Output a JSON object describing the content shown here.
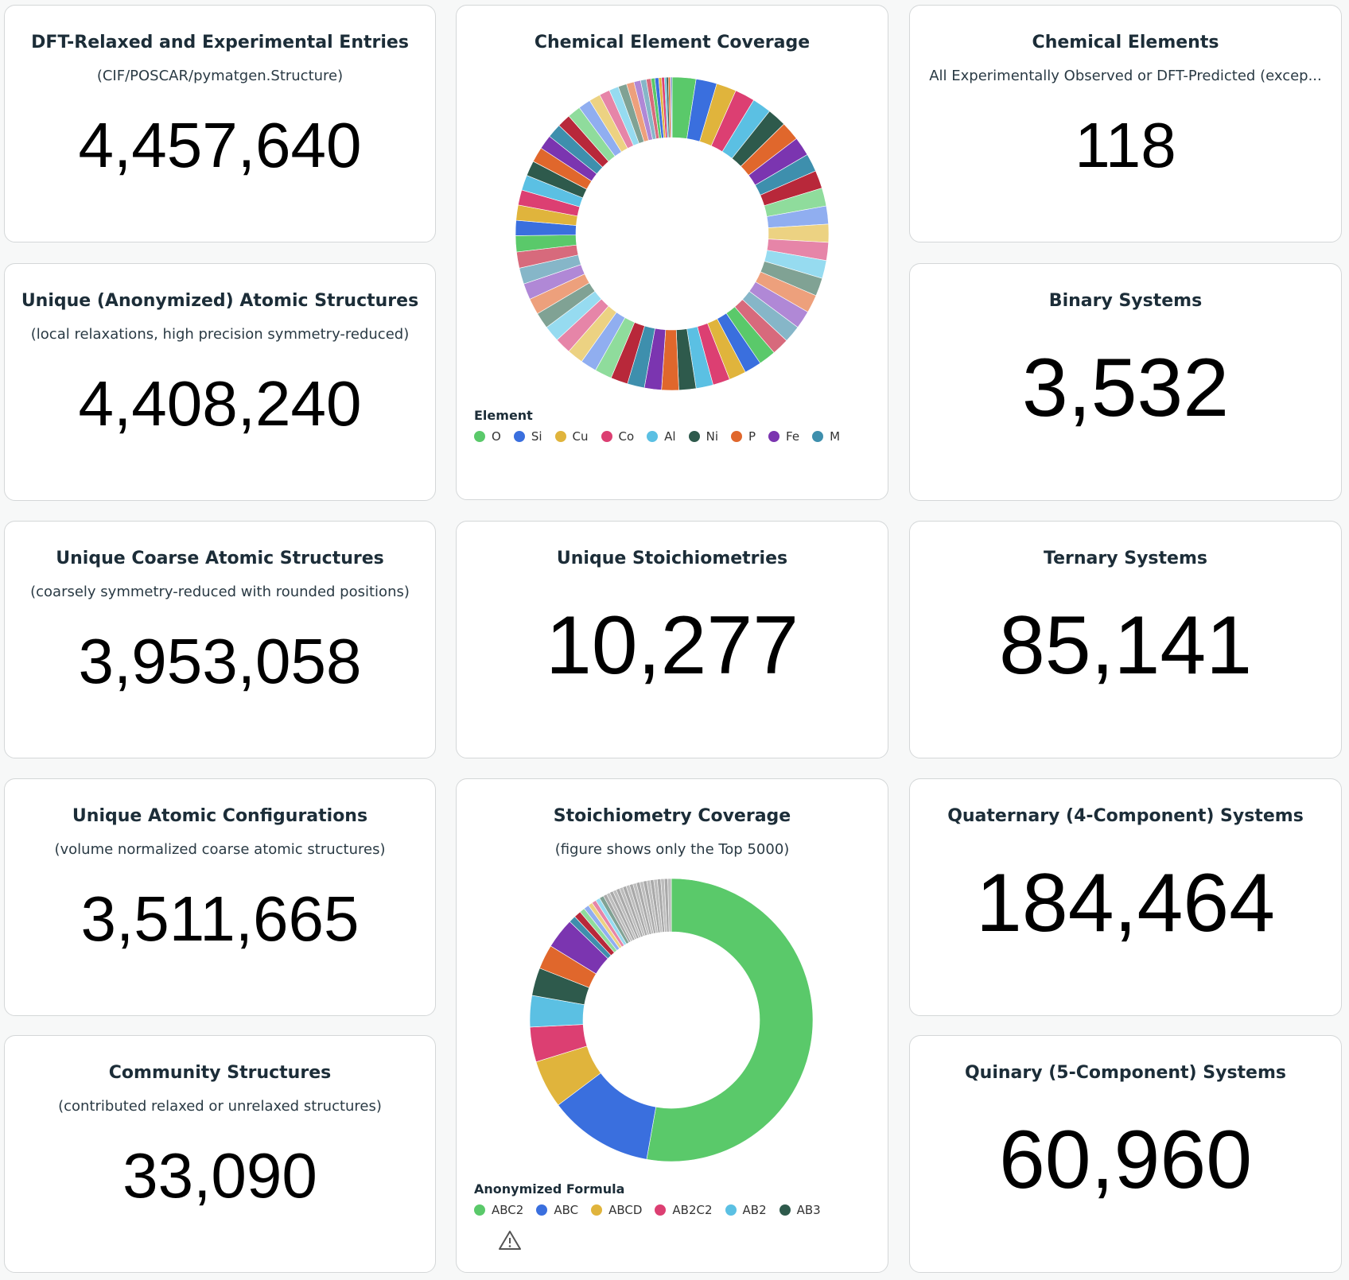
{
  "cards": [
    {
      "title": "DFT-Relaxed and Experimental Entries",
      "subtitle": "(CIF/POSCAR/pymatgen.Structure)",
      "value": "4,457,640"
    },
    {
      "title": "Unique (Anonymized) Atomic Structures",
      "subtitle": "(local relaxations, high precision symmetry-reduced)",
      "value": "4,408,240"
    },
    {
      "title": "Unique Coarse Atomic Structures",
      "subtitle": "(coarsely symmetry-reduced with rounded positions)",
      "value": "3,953,058"
    },
    {
      "title": "Unique Atomic Configurations",
      "subtitle": "(volume normalized coarse atomic structures)",
      "value": "3,511,665"
    },
    {
      "title": "Community Structures",
      "subtitle": "(contributed relaxed or unrelaxed structures)",
      "value": "33,090"
    },
    {
      "title": "Chemical Elements",
      "subtitle": "All Experimentally Observed or DFT-Predicted (excep...",
      "value": "118"
    },
    {
      "title": "Binary Systems",
      "value": "3,532"
    },
    {
      "title": "Unique Stoichiometries",
      "value": "10,277"
    },
    {
      "title": "Ternary Systems",
      "value": "85,141"
    },
    {
      "title": "Quaternary (4-Component) Systems",
      "value": "184,464"
    },
    {
      "title": "Quinary (5-Component) Systems",
      "value": "60,960"
    }
  ],
  "chart_data": [
    {
      "type": "pie",
      "donut": true,
      "title": "Chemical Element Coverage",
      "legend_title": "Element",
      "categories": [
        "O",
        "Si",
        "Cu",
        "Co",
        "Al",
        "Ni",
        "P",
        "Fe",
        "M",
        null,
        null,
        null,
        null,
        null,
        null,
        null,
        null,
        null,
        null,
        null,
        null,
        null,
        null,
        null,
        null,
        null,
        null,
        null,
        null,
        null,
        null,
        null,
        null,
        null,
        null,
        null,
        null,
        null,
        null,
        null,
        null,
        null,
        null,
        null,
        null,
        null,
        null,
        null,
        null,
        null,
        null,
        null,
        null,
        null,
        null,
        null,
        null,
        null,
        null,
        null,
        null,
        null,
        null,
        null,
        null,
        null,
        null,
        null,
        null
      ],
      "values": [
        2.5,
        2.2,
        2.1,
        2.1,
        2.0,
        2.0,
        2.0,
        2.0,
        1.9,
        1.9,
        1.9,
        1.9,
        1.9,
        1.9,
        1.9,
        1.9,
        1.9,
        1.9,
        1.8,
        1.8,
        1.8,
        1.8,
        1.8,
        1.8,
        1.8,
        1.8,
        1.8,
        1.8,
        1.8,
        1.8,
        1.8,
        1.7,
        1.7,
        1.7,
        1.7,
        1.7,
        1.7,
        1.7,
        1.7,
        1.7,
        1.7,
        1.6,
        1.6,
        1.6,
        1.6,
        1.6,
        1.6,
        1.5,
        1.5,
        1.4,
        1.4,
        1.3,
        1.2,
        1.1,
        1.0,
        0.9,
        0.8,
        0.7,
        0.6,
        0.5,
        0.4,
        0.4,
        0.3,
        0.3,
        0.2,
        0.2,
        0.2,
        0.1,
        0.1
      ],
      "palette": [
        "#5ac96a",
        "#3a6fde",
        "#e0b43c",
        "#dc3f72",
        "#5bc0e3",
        "#2e5a4c",
        "#e0672c",
        "#7b35b0",
        "#3e8fad",
        "#b8283a",
        "#8fdc9c",
        "#90aef0",
        "#ecd282",
        "#e685a8",
        "#96dbf0",
        "#80a294",
        "#eda07c",
        "#b088d6",
        "#86b6c8",
        "#d76a7c"
      ]
    },
    {
      "type": "pie",
      "donut": true,
      "title": "Stoichiometry Coverage",
      "subtitle": "(figure shows only the Top 5000)",
      "legend_title": "Anonymized Formula",
      "categories": [
        "ABC2",
        "ABC",
        "ABCD",
        "AB2C2",
        "AB2",
        "AB3",
        null,
        null,
        null,
        null,
        null,
        null,
        null,
        null,
        null,
        null,
        null,
        null,
        null,
        null,
        null,
        null,
        null,
        null,
        null,
        null,
        null,
        null,
        null,
        null,
        null,
        null,
        null,
        null,
        null,
        null
      ],
      "values": [
        53,
        12,
        5.5,
        4,
        3.6,
        3.2,
        2.8,
        3.5,
        0.8,
        0.8,
        0.6,
        0.6,
        0.5,
        0.5,
        0.5,
        0.5,
        0.4,
        0.4,
        0.4,
        0.4,
        0.4,
        0.4,
        0.4,
        0.4,
        0.4,
        0.4,
        0.4,
        0.4,
        0.4,
        0.4,
        0.4,
        0.4,
        0.4,
        0.4,
        0.4,
        0.4
      ],
      "colors": [
        "#5ac96a",
        "#3a6fde",
        "#e0b43c",
        "#dc3f72",
        "#5bc0e3",
        "#2e5a4c",
        "#e0672c",
        "#7b35b0",
        "#3e8fad",
        "#b8283a",
        "#8fdc9c",
        "#90aef0",
        "#ecd282",
        "#e685a8",
        "#96dbf0",
        "#80a294",
        "#a9a9a9",
        "#bdbdbd",
        "#a9a9a9",
        "#bdbdbd",
        "#a9a9a9",
        "#bdbdbd",
        "#a9a9a9",
        "#bdbdbd",
        "#a9a9a9",
        "#bdbdbd",
        "#a9a9a9",
        "#bdbdbd",
        "#a9a9a9",
        "#bdbdbd",
        "#a9a9a9",
        "#bdbdbd",
        "#a9a9a9",
        "#bdbdbd",
        "#a9a9a9",
        "#bdbdbd"
      ]
    }
  ]
}
